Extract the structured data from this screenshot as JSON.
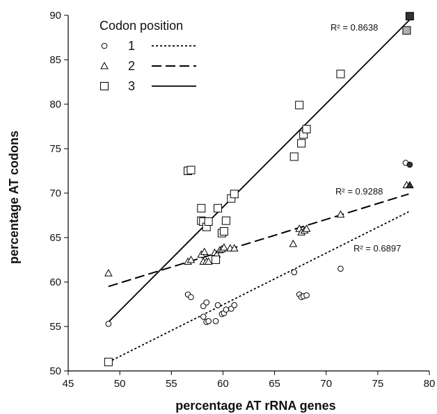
{
  "chart_data": {
    "type": "scatter",
    "xlabel": "percentage AT rRNA genes",
    "ylabel": "percentage AT codons",
    "xlim": [
      45,
      80
    ],
    "ylim": [
      50,
      90
    ],
    "xticks": [
      45,
      50,
      55,
      60,
      65,
      70,
      75,
      80
    ],
    "yticks": [
      50,
      55,
      60,
      65,
      70,
      75,
      80,
      85,
      90
    ],
    "grid": false,
    "legend": {
      "title": "Codon position",
      "placement": "top-left",
      "entries": [
        {
          "label": "1",
          "marker": "circle",
          "line": "dotted"
        },
        {
          "label": "2",
          "marker": "triangle",
          "line": "dashed"
        },
        {
          "label": "3",
          "marker": "square",
          "line": "solid"
        }
      ]
    },
    "series": [
      {
        "name": "1",
        "marker": "circle",
        "r2_label": "R² = 0.6897",
        "fit": {
          "x": [
            48.9,
            78.0
          ],
          "y": [
            51.0,
            67.9
          ]
        },
        "x": [
          48.9,
          56.6,
          56.9,
          58.1,
          58.1,
          58.4,
          58.4,
          58.6,
          59.3,
          59.5,
          59.9,
          60.1,
          60.3,
          60.8,
          61.1,
          66.9,
          67.4,
          67.6,
          67.8,
          68.1,
          71.4,
          77.7
        ],
        "y": [
          55.3,
          58.6,
          58.3,
          57.3,
          56.1,
          55.5,
          57.7,
          55.6,
          55.6,
          57.4,
          56.4,
          56.5,
          56.9,
          57.0,
          57.4,
          61.1,
          58.6,
          58.3,
          58.4,
          58.5,
          61.5,
          73.4
        ],
        "highlight": [
          {
            "x": 78.1,
            "y": 73.2,
            "fill": "#333333"
          }
        ]
      },
      {
        "name": "2",
        "marker": "triangle",
        "r2_label": "R² = 0.9288",
        "fit": {
          "x": [
            48.9,
            78.0
          ],
          "y": [
            59.5,
            69.9
          ]
        },
        "x": [
          48.9,
          56.6,
          56.9,
          57.9,
          58.1,
          58.2,
          58.4,
          58.6,
          59.2,
          59.4,
          59.7,
          59.9,
          60.1,
          60.7,
          61.1,
          66.8,
          67.4,
          67.6,
          67.9,
          68.1,
          71.4,
          77.8
        ],
        "y": [
          61.0,
          62.3,
          62.5,
          63.1,
          62.3,
          63.4,
          62.3,
          62.3,
          63.3,
          63.1,
          63.6,
          63.7,
          63.9,
          63.8,
          63.8,
          64.3,
          66.0,
          65.6,
          65.8,
          66.0,
          67.6,
          70.9
        ],
        "highlight": [
          {
            "x": 78.1,
            "y": 70.9,
            "fill": "#333333"
          }
        ]
      },
      {
        "name": "3",
        "marker": "square",
        "r2_label": "R² = 0.8638",
        "fit": {
          "x": [
            48.9,
            78.1
          ],
          "y": [
            55.5,
            89.5
          ]
        },
        "x": [
          48.9,
          56.6,
          56.9,
          57.9,
          57.9,
          58.1,
          58.4,
          58.6,
          59.3,
          59.5,
          59.9,
          60.1,
          60.3,
          60.8,
          61.1,
          66.9,
          67.4,
          67.6,
          67.8,
          68.1,
          71.4
        ],
        "y": [
          51.0,
          72.5,
          72.6,
          68.3,
          66.9,
          66.8,
          66.2,
          66.8,
          62.5,
          68.3,
          65.5,
          65.7,
          66.9,
          69.4,
          69.9,
          74.1,
          79.9,
          75.6,
          76.6,
          77.2,
          83.4
        ],
        "highlight": [
          {
            "x": 77.8,
            "y": 88.3,
            "fill": "#b0b0b0"
          },
          {
            "x": 78.1,
            "y": 89.9,
            "fill": "#333333"
          }
        ]
      }
    ]
  }
}
